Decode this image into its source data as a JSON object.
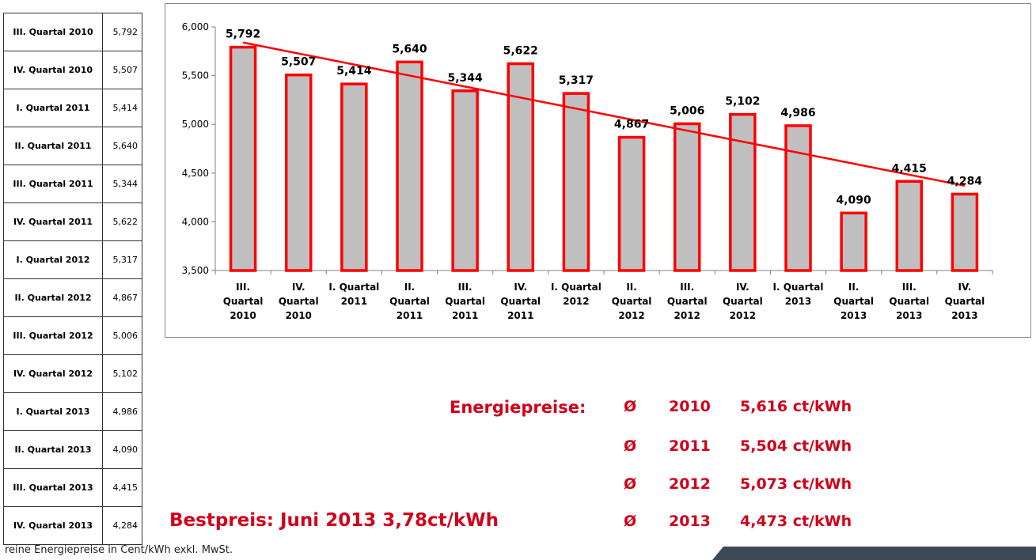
{
  "table": {
    "rows": [
      {
        "quarter": "III. Quartal 2010",
        "value": "5,792"
      },
      {
        "quarter": "IV. Quartal 2010",
        "value": "5,507"
      },
      {
        "quarter": "I. Quartal 2011",
        "value": "5,414"
      },
      {
        "quarter": "II. Quartal 2011",
        "value": "5,640"
      },
      {
        "quarter": "III. Quartal 2011",
        "value": "5,344"
      },
      {
        "quarter": "IV. Quartal 2011",
        "value": "5,622"
      },
      {
        "quarter": "I. Quartal 2012",
        "value": "5,317"
      },
      {
        "quarter": "II. Quartal 2012",
        "value": "4,867"
      },
      {
        "quarter": "III. Quartal 2012",
        "value": "5,006"
      },
      {
        "quarter": "IV. Quartal 2012",
        "value": "5,102"
      },
      {
        "quarter": "I. Quartal 2013",
        "value": "4,986"
      },
      {
        "quarter": "II. Quartal 2013",
        "value": "4,090"
      },
      {
        "quarter": "III. Quartal 2013",
        "value": "4,415"
      },
      {
        "quarter": "IV. Quartal 2013",
        "value": "4,284"
      }
    ]
  },
  "chart_data": {
    "type": "bar",
    "categories": [
      [
        "III.",
        "Quartal",
        "2010"
      ],
      [
        "IV.",
        "Quartal",
        "2010"
      ],
      [
        "I. Quartal",
        "2011"
      ],
      [
        "II.",
        "Quartal",
        "2011"
      ],
      [
        "III.",
        "Quartal",
        "2011"
      ],
      [
        "IV.",
        "Quartal",
        "2011"
      ],
      [
        "I. Quartal",
        "2012"
      ],
      [
        "II.",
        "Quartal",
        "2012"
      ],
      [
        "III.",
        "Quartal",
        "2012"
      ],
      [
        "IV.",
        "Quartal",
        "2012"
      ],
      [
        "I. Quartal",
        "2013"
      ],
      [
        "II.",
        "Quartal",
        "2013"
      ],
      [
        "III.",
        "Quartal",
        "2013"
      ],
      [
        "IV.",
        "Quartal",
        "2013"
      ]
    ],
    "values": [
      5.792,
      5.507,
      5.414,
      5.64,
      5.344,
      5.622,
      5.317,
      4.867,
      5.006,
      5.102,
      4.986,
      4.09,
      4.415,
      4.284
    ],
    "data_labels": [
      "5,792",
      "5,507",
      "5,414",
      "5,640",
      "5,344",
      "5,622",
      "5,317",
      "4,867",
      "5,006",
      "5,102",
      "4,986",
      "4,090",
      "4,415",
      "4,284"
    ],
    "ylim": [
      3.5,
      6.0
    ],
    "yticks": [
      3.5,
      4.0,
      4.5,
      5.0,
      5.5,
      6.0
    ],
    "ytick_labels": [
      "3,500",
      "4,000",
      "4,500",
      "5,000",
      "5,500",
      "6,000"
    ],
    "trendline": {
      "start": 5.84,
      "end": 4.37
    },
    "grid": false,
    "colors": {
      "bar_fill": "#bfbfbf",
      "bar_border": "#ff0000",
      "trend": "#ff0000"
    }
  },
  "summary": {
    "label": "Energiepreise:",
    "symbol": "Ø",
    "rows": [
      {
        "year": "2010",
        "price": "5,616 ct/kWh"
      },
      {
        "year": "2011",
        "price": "5,504 ct/kWh"
      },
      {
        "year": "2012",
        "price": "5,073 ct/kWh"
      },
      {
        "year": "2013",
        "price": "4,473 ct/kWh"
      }
    ],
    "best": "Bestpreis: Juni 2013  3,78ct/kWh"
  },
  "footnote": "reine Energiepreise in Cent/kWh exkl. MwSt.",
  "accent_color": "#d0021b"
}
